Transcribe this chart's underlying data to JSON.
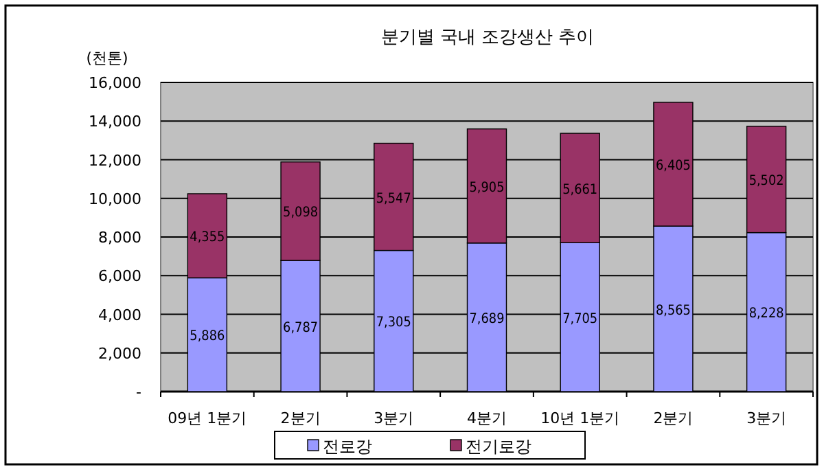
{
  "chart_data": {
    "type": "bar",
    "title": "분기별 국내 조강생산 추이",
    "ylabel": "(천톤)",
    "categories": [
      "09년 1분기",
      "2분기",
      "3분기",
      "4분기",
      "10년 1분기",
      "2분기",
      "3분기"
    ],
    "series": [
      {
        "name": "전로강",
        "color": "#9999ff",
        "values": [
          5886,
          6787,
          7305,
          7689,
          7705,
          8565,
          8228
        ],
        "value_labels": [
          "5,886",
          "6,787",
          "7,305",
          "7,689",
          "7,705",
          "8,565",
          "8,228"
        ]
      },
      {
        "name": "전기로강",
        "color": "#993366",
        "values": [
          4355,
          5098,
          5547,
          5905,
          5661,
          6405,
          5502
        ],
        "value_labels": [
          "4,355",
          "5,098",
          "5,547",
          "5,905",
          "5,661",
          "6,405",
          "5,502"
        ]
      }
    ],
    "stacked": true,
    "grid": "y",
    "legend": "bottom",
    "ylim": [
      0,
      16000
    ],
    "yticks": [
      {
        "value": 0,
        "label": "-"
      },
      {
        "value": 2000,
        "label": "2,000"
      },
      {
        "value": 4000,
        "label": "4,000"
      },
      {
        "value": 6000,
        "label": "6,000"
      },
      {
        "value": 8000,
        "label": "8,000"
      },
      {
        "value": 10000,
        "label": "10,000"
      },
      {
        "value": 12000,
        "label": "12,000"
      },
      {
        "value": 14000,
        "label": "14,000"
      },
      {
        "value": 16000,
        "label": "16,000"
      }
    ]
  }
}
